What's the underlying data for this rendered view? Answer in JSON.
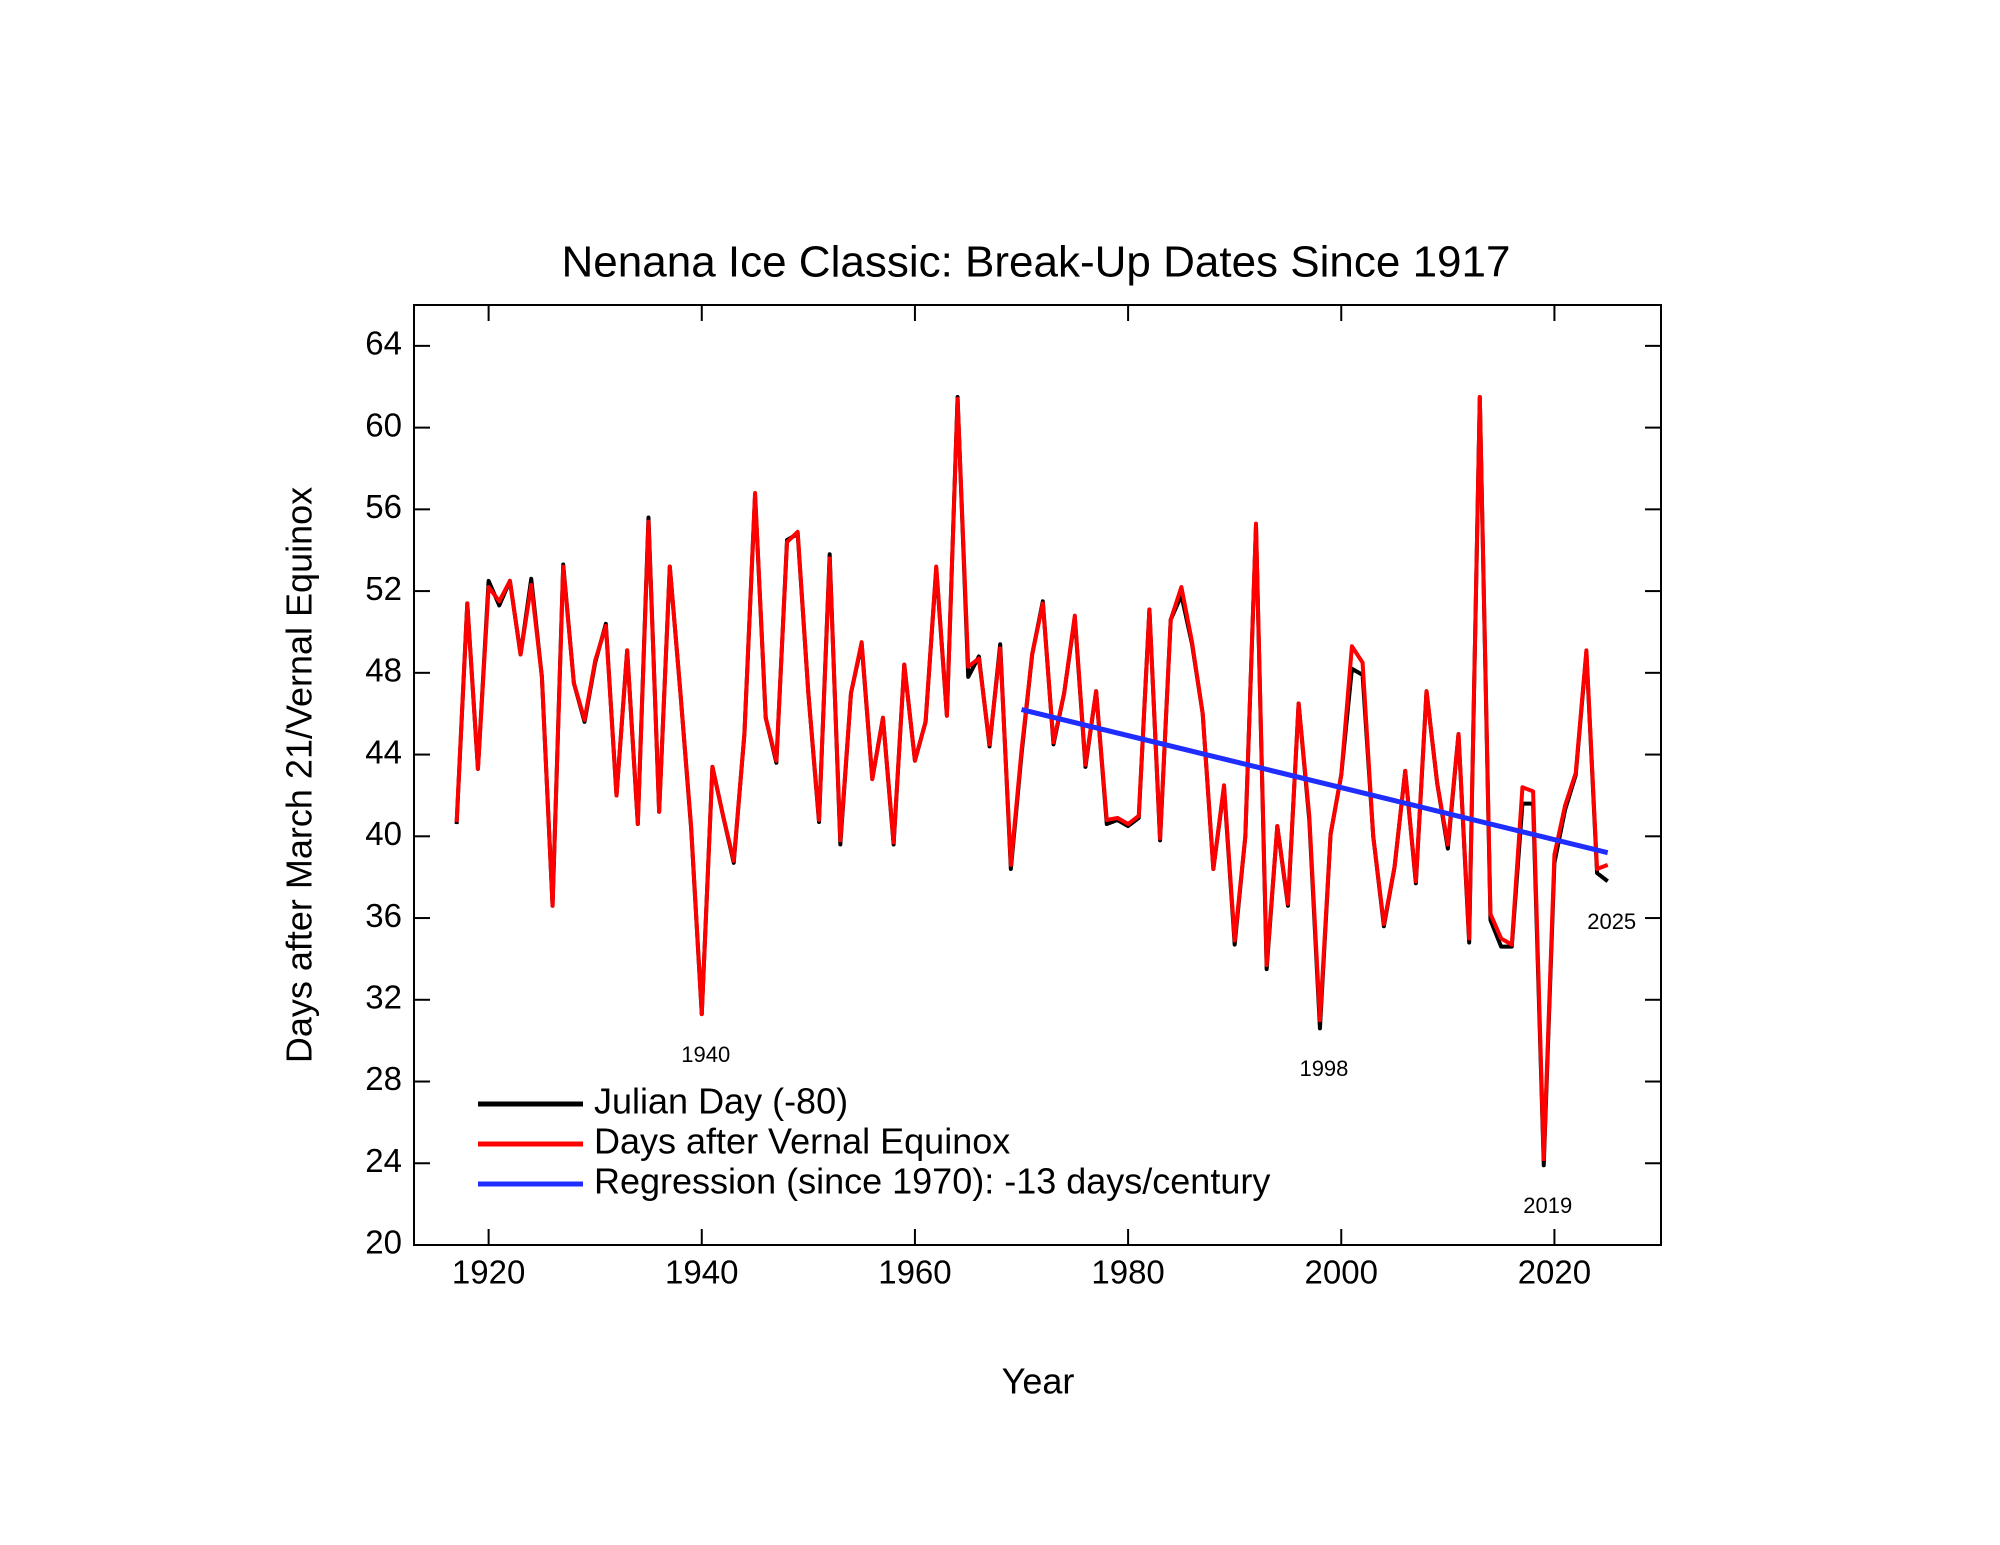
{
  "chart_data": {
    "type": "line",
    "title": "Nenana Ice Classic: Break-Up Dates Since 1917",
    "xlabel": "Year",
    "ylabel": "Days after March 21/Vernal Equinox",
    "x": [
      1917,
      1918,
      1919,
      1920,
      1921,
      1922,
      1923,
      1924,
      1925,
      1926,
      1927,
      1928,
      1929,
      1930,
      1931,
      1932,
      1933,
      1934,
      1935,
      1936,
      1937,
      1938,
      1939,
      1940,
      1941,
      1942,
      1943,
      1944,
      1945,
      1946,
      1947,
      1948,
      1949,
      1950,
      1951,
      1952,
      1953,
      1954,
      1955,
      1956,
      1957,
      1958,
      1959,
      1960,
      1961,
      1962,
      1963,
      1964,
      1965,
      1966,
      1967,
      1968,
      1969,
      1970,
      1971,
      1972,
      1973,
      1974,
      1975,
      1976,
      1977,
      1978,
      1979,
      1980,
      1981,
      1982,
      1983,
      1984,
      1985,
      1986,
      1987,
      1988,
      1989,
      1990,
      1991,
      1992,
      1993,
      1994,
      1995,
      1996,
      1997,
      1998,
      1999,
      2000,
      2001,
      2002,
      2003,
      2004,
      2005,
      2006,
      2007,
      2008,
      2009,
      2010,
      2011,
      2012,
      2013,
      2014,
      2015,
      2016,
      2017,
      2018,
      2019,
      2020,
      2021,
      2022,
      2023,
      2024,
      2025
    ],
    "series": [
      {
        "name": "Julian Day (-80)",
        "color": "#000000",
        "values": [
          40.6,
          51.4,
          43.3,
          52.5,
          51.3,
          52.5,
          48.9,
          52.6,
          47.8,
          36.6,
          53.3,
          47.5,
          45.6,
          48.5,
          50.4,
          42.0,
          49.1,
          40.6,
          55.6,
          41.2,
          53.2,
          47.0,
          40.4,
          31.3,
          43.4,
          41.0,
          38.7,
          45.0,
          56.7,
          45.8,
          43.6,
          54.5,
          54.8,
          47.0,
          40.7,
          53.8,
          39.6,
          47.0,
          49.4,
          42.8,
          45.8,
          39.6,
          48.4,
          43.7,
          45.6,
          53.1,
          45.9,
          61.5,
          47.8,
          48.8,
          44.4,
          49.4,
          38.4,
          44.0,
          48.9,
          51.5,
          44.5,
          47.0,
          50.7,
          43.4,
          47.1,
          40.6,
          40.8,
          40.5,
          40.9,
          51.1,
          39.8,
          50.6,
          51.8,
          49.4,
          46.0,
          38.4,
          42.4,
          34.7,
          40.0,
          55.2,
          33.5,
          40.5,
          36.6,
          46.5,
          40.8,
          30.6,
          40.1,
          43.0,
          48.2,
          47.9,
          40.0,
          35.6,
          38.5,
          43.2,
          37.7,
          47.1,
          42.6,
          39.4,
          45.0,
          34.8,
          61.5,
          35.9,
          34.6,
          34.6,
          41.6,
          41.6,
          23.9,
          38.7,
          41.3,
          43.0,
          49.0,
          38.2,
          37.8
        ]
      },
      {
        "name": "Days after Vernal Equinox",
        "color": "#ff0000",
        "values": [
          40.7,
          51.4,
          43.3,
          52.2,
          51.5,
          52.5,
          48.9,
          52.3,
          47.8,
          36.6,
          53.2,
          47.5,
          45.7,
          48.6,
          50.3,
          42.0,
          49.1,
          40.6,
          55.4,
          41.2,
          53.2,
          47.0,
          40.5,
          31.3,
          43.4,
          41.0,
          38.8,
          45.0,
          56.8,
          45.8,
          43.7,
          54.4,
          54.9,
          47.0,
          40.8,
          53.6,
          39.8,
          47.0,
          49.5,
          42.8,
          45.8,
          39.7,
          48.4,
          43.7,
          45.6,
          53.2,
          45.9,
          61.4,
          48.3,
          48.7,
          44.5,
          49.2,
          38.6,
          44.2,
          48.9,
          51.4,
          44.6,
          47.0,
          50.8,
          43.5,
          47.1,
          40.8,
          40.9,
          40.6,
          41.0,
          51.1,
          39.9,
          50.6,
          52.2,
          49.5,
          46.0,
          38.4,
          42.5,
          34.9,
          40.0,
          55.3,
          33.7,
          40.5,
          36.7,
          46.5,
          41.0,
          31.0,
          40.1,
          43.0,
          49.3,
          48.5,
          40.0,
          35.7,
          38.5,
          43.2,
          37.8,
          47.1,
          42.6,
          39.6,
          45.0,
          35.0,
          61.5,
          36.2,
          35.0,
          34.7,
          42.4,
          42.2,
          24.2,
          39.1,
          41.5,
          43.1,
          49.1,
          38.4,
          38.6
        ]
      },
      {
        "name": "Regression (since 1970): -13 days/century",
        "color": "#1f2eff",
        "x": [
          1970,
          2025
        ],
        "values": [
          46.2,
          39.2
        ]
      }
    ],
    "annotations": [
      {
        "text": "1940",
        "x": 1940
      },
      {
        "text": "1998",
        "x": 1998
      },
      {
        "text": "2019",
        "x": 2019
      },
      {
        "text": "2025",
        "x": 2025
      }
    ],
    "xlim": [
      1913,
      2030
    ],
    "ylim": [
      20,
      66
    ],
    "xticks": [
      1920,
      1940,
      1960,
      1980,
      2000,
      2020
    ],
    "yticks": [
      20,
      24,
      28,
      32,
      36,
      40,
      44,
      48,
      52,
      56,
      60,
      64
    ],
    "grid": false,
    "legend": "lower left"
  }
}
